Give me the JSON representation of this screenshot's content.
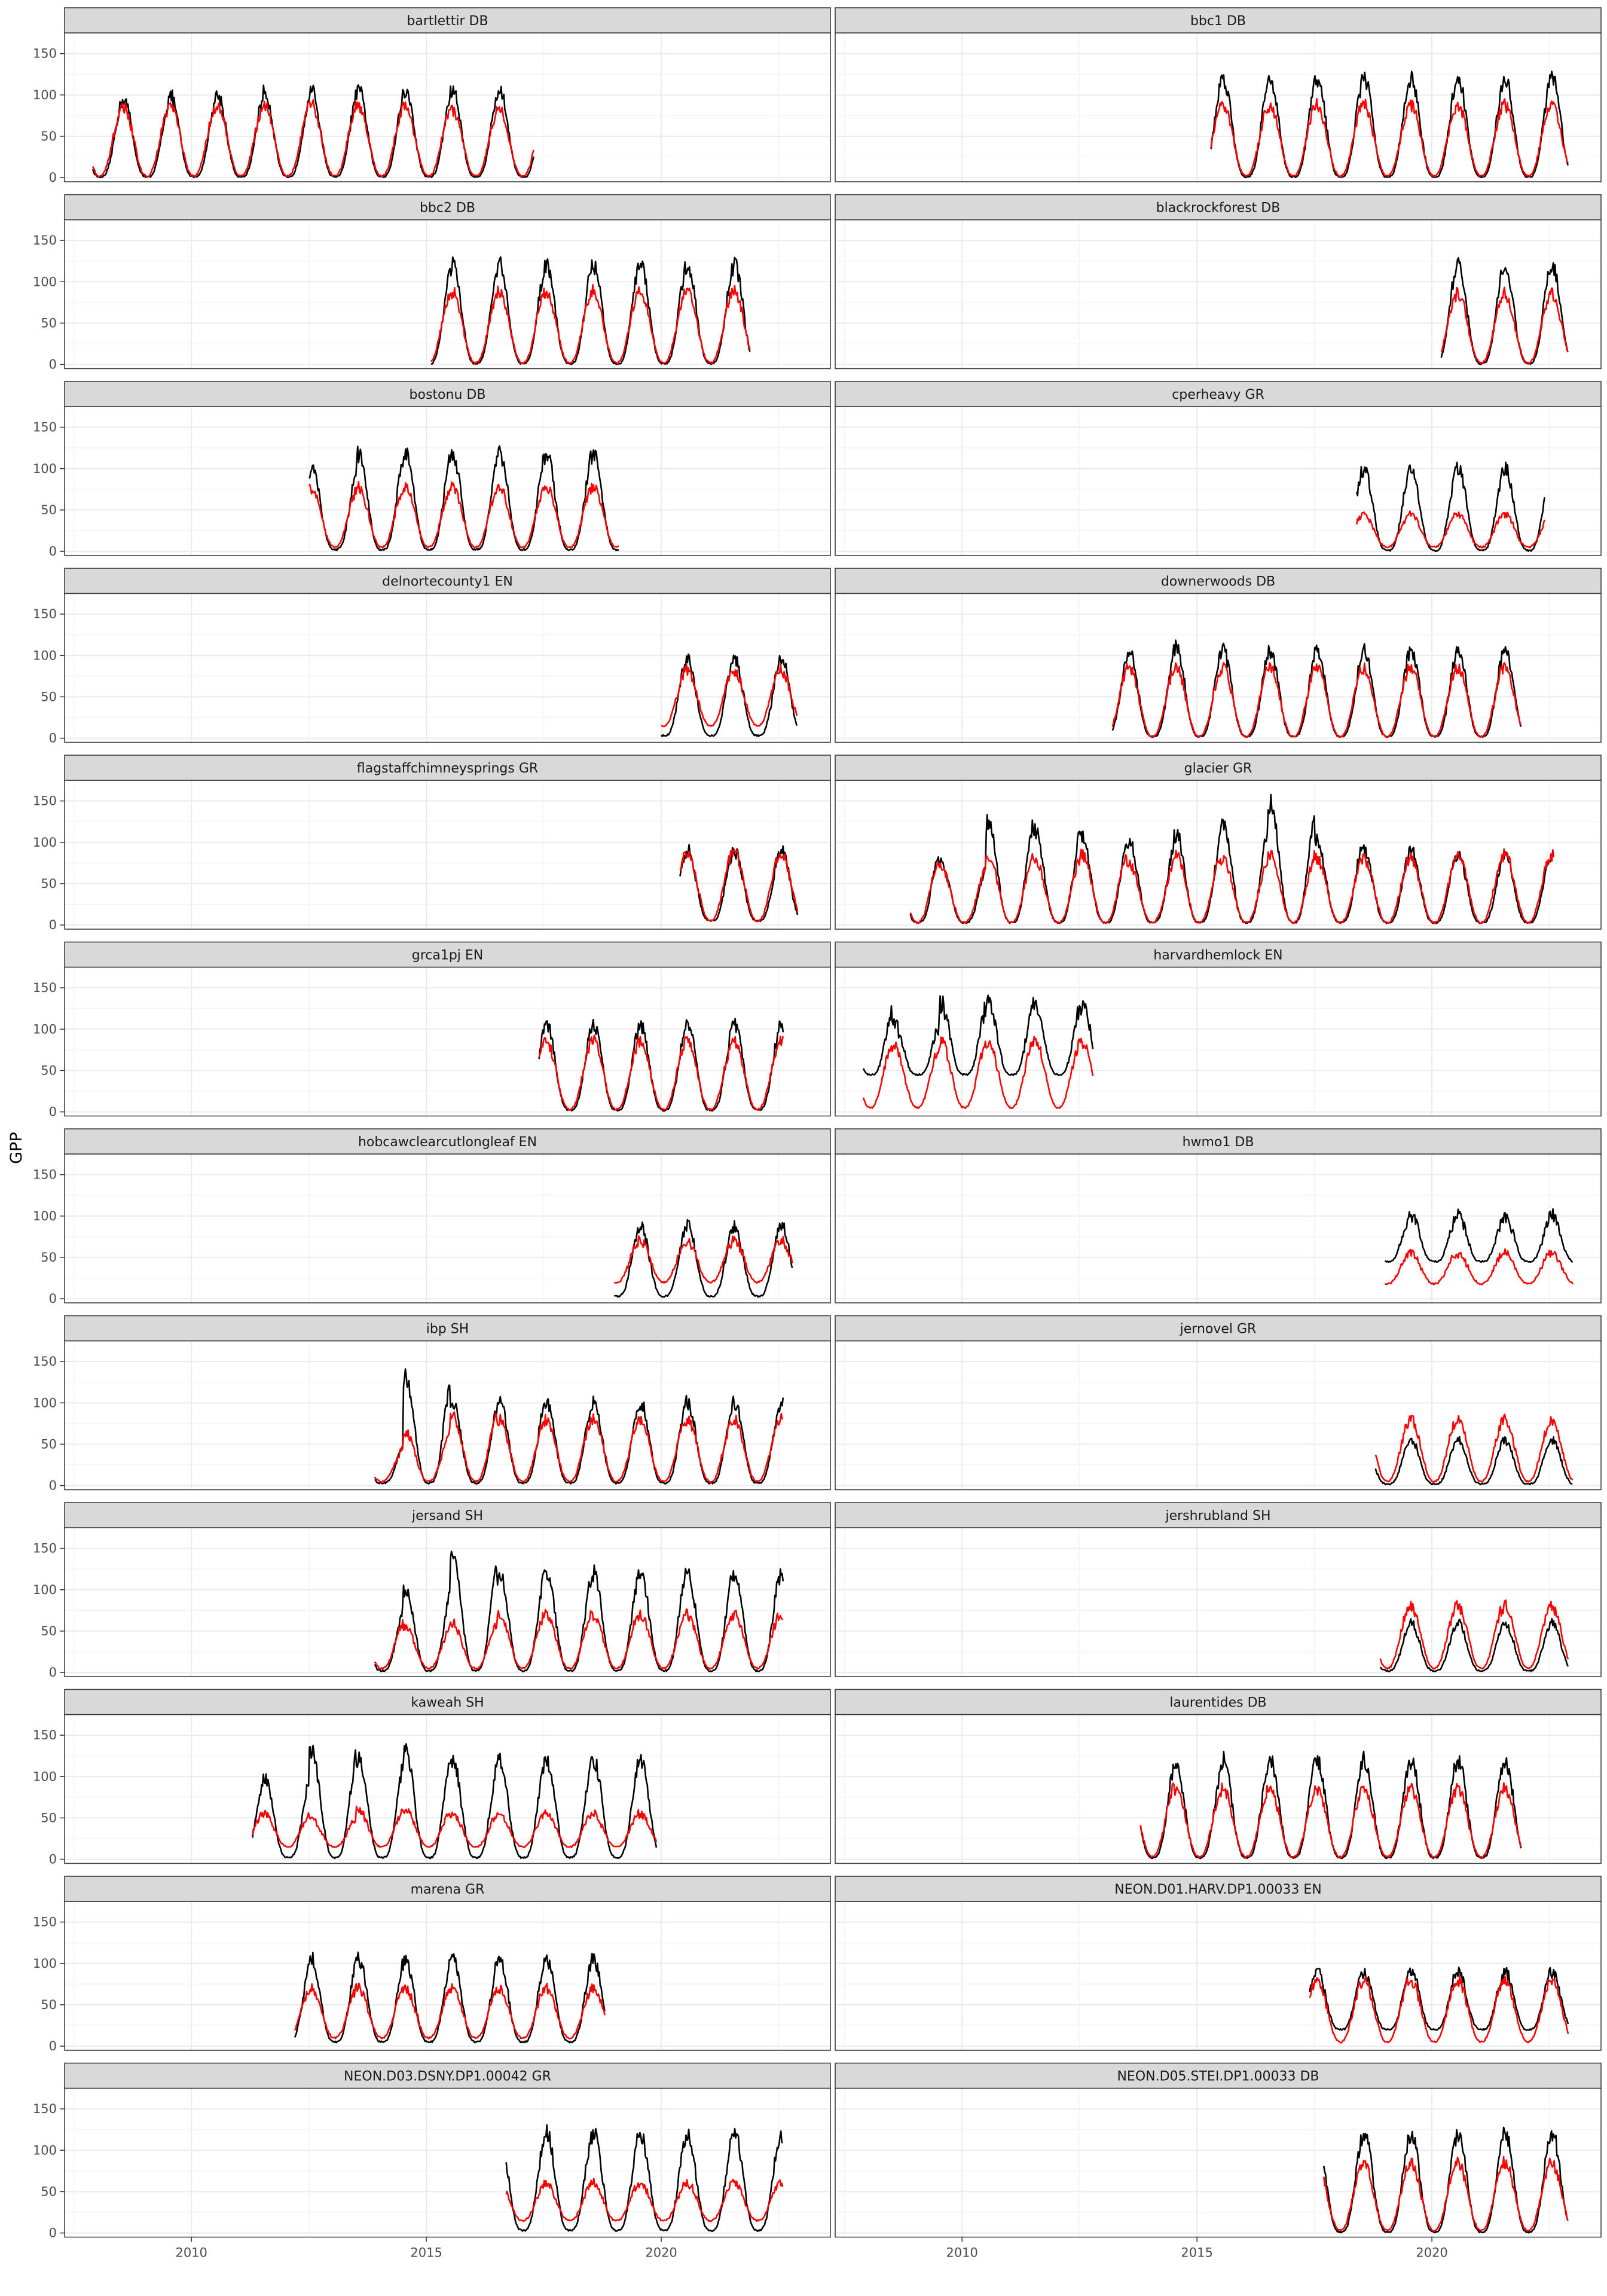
{
  "chart_data": {
    "type": "line",
    "facet_layout": "2 columns x 12 rows, shared axes",
    "ylabel": "GPP",
    "xlabel": "",
    "ylim": [
      -5,
      175
    ],
    "yticks": [
      0,
      50,
      100,
      150
    ],
    "xlim": [
      2007.3,
      2023.6
    ],
    "xticks": [
      2010,
      2015,
      2020
    ],
    "grid": true,
    "legend": "none",
    "series_colors": {
      "black": "#000000",
      "red": "#ff0000"
    },
    "panels": [
      {
        "title": "bartlettir DB",
        "start": 2007.9,
        "end": 2017.3,
        "peaks_black": [
          95,
          95,
          98,
          100,
          103,
          104,
          105,
          104,
          105
        ],
        "peaks_red": [
          85,
          85,
          88,
          85,
          88,
          88,
          88,
          85,
          82
        ],
        "base_black": 1,
        "base_red": 2
      },
      {
        "title": "bbc1 DB",
        "start": 2015.3,
        "end": 2022.9,
        "peaks_black": [
          98,
          118,
          118,
          115,
          110,
          118,
          118,
          120
        ],
        "peaks_red": [
          85,
          88,
          90,
          88,
          85,
          88,
          85,
          88
        ],
        "base_black": 1,
        "base_red": 2
      },
      {
        "title": "bbc2 DB",
        "start": 2015.1,
        "end": 2021.9,
        "peaks_black": [
          100,
          98,
          95,
          110,
          105,
          118,
          120
        ],
        "peaks_red": [
          85,
          80,
          80,
          85,
          85,
          85,
          88
        ],
        "base_black": 1,
        "base_red": 2
      },
      {
        "title": "blackrockforest DB",
        "start": 2020.2,
        "end": 2022.9,
        "peaks_black": [
          105,
          122,
          120
        ],
        "peaks_red": [
          85,
          88,
          85
        ],
        "base_black": 1,
        "base_red": 2
      },
      {
        "title": "bostonu DB",
        "start": 2012.5,
        "end": 2019.1,
        "peaks_black": [
          110,
          130,
          130,
          112,
          105,
          100,
          118
        ],
        "peaks_red": [
          70,
          80,
          80,
          75,
          78,
          75,
          78
        ],
        "base_black": 2,
        "base_red": 5
      },
      {
        "title": "cperheavy GR",
        "start": 2018.4,
        "end": 2022.4,
        "peaks_black": [
          142,
          138,
          45,
          142,
          100
        ],
        "peaks_red": [
          75,
          80,
          50,
          80,
          45
        ],
        "base_black": 1,
        "base_red": 5
      },
      {
        "title": "delnortecounty1 EN",
        "start": 2020.0,
        "end": 2022.9,
        "peaks_black": [
          85,
          155,
          95
        ],
        "peaks_red": [
          80,
          65,
          82
        ],
        "base_black": 3,
        "base_red": 15
      },
      {
        "title": "downerwoods DB",
        "start": 2013.2,
        "end": 2021.9,
        "peaks_black": [
          108,
          110,
          100,
          105,
          110,
          105,
          105,
          110,
          105
        ],
        "peaks_red": [
          85,
          85,
          80,
          85,
          85,
          85,
          85,
          85,
          85
        ],
        "base_black": 2,
        "base_red": 2
      },
      {
        "title": "flagstaffchimneysprings GR",
        "start": 2020.4,
        "end": 2022.9,
        "peaks_black": [
          60,
          80,
          90
        ],
        "peaks_red": [
          60,
          80,
          88
        ],
        "base_black": 5,
        "base_red": 5
      },
      {
        "title": "glacier GR",
        "start": 2008.9,
        "end": 2022.6,
        "peaks_black": [
          112,
          95,
          75,
          125,
          115,
          105,
          100,
          110,
          120,
          145,
          100,
          90,
          90,
          85
        ],
        "peaks_red": [
          85,
          80,
          70,
          85,
          80,
          85,
          75,
          85,
          80,
          85,
          80,
          80,
          80,
          85
        ],
        "base_black": 3,
        "base_red": 3
      },
      {
        "title": "grca1pj EN",
        "start": 2017.4,
        "end": 2022.6,
        "peaks_black": [
          108,
          115,
          118,
          105,
          108,
          105
        ],
        "peaks_red": [
          75,
          75,
          80,
          45,
          75,
          85
        ],
        "base_black": 2,
        "base_red": 3
      },
      {
        "title": "harvardhemlock EN",
        "start": 2007.9,
        "end": 2012.8,
        "peaks_black": [
          125,
          105,
          130
        ],
        "peaks_red": [
          85,
          80,
          85
        ],
        "base_black": 45,
        "base_red": 5
      },
      {
        "title": "hobcawclearcutlongleaf EN",
        "start": 2019.0,
        "end": 2022.8,
        "peaks_black": [
          80,
          105,
          105,
          88
        ],
        "peaks_red": [
          70,
          70,
          70,
          70
        ],
        "base_black": 3,
        "base_red": 20
      },
      {
        "title": "hwmo1 DB",
        "start": 2019.0,
        "end": 2023.0,
        "peaks_black": [
          95,
          110,
          105,
          100
        ],
        "peaks_red": [
          60,
          55,
          55,
          55
        ],
        "base_black": 45,
        "base_red": 18
      },
      {
        "title": "ibp SH",
        "start": 2013.9,
        "end": 2022.6,
        "peaks_black": [
          120,
          165,
          90,
          120,
          100,
          110,
          50,
          130,
          100,
          100
        ],
        "peaks_red": [
          40,
          80,
          75,
          85,
          50,
          70,
          45,
          65,
          85,
          80
        ],
        "base_black": 3,
        "base_red": 5
      },
      {
        "title": "jernovel GR",
        "start": 2018.8,
        "end": 2023.0,
        "peaks_black": [
          30,
          50,
          25,
          55
        ],
        "peaks_red": [
          45,
          50,
          85,
          80
        ],
        "base_black": 2,
        "base_red": 5
      },
      {
        "title": "jersand SH",
        "start": 2013.9,
        "end": 2022.6,
        "peaks_black": [
          110,
          100,
          110,
          145,
          115,
          105,
          80,
          100,
          138,
          120
        ],
        "peaks_red": [
          45,
          60,
          80,
          75,
          65,
          55,
          60,
          55,
          60,
          70
        ],
        "base_black": 2,
        "base_red": 5
      },
      {
        "title": "jershrubland SH",
        "start": 2018.9,
        "end": 2022.9,
        "peaks_black": [
          80,
          110,
          120,
          60
        ],
        "peaks_red": [
          50,
          55,
          60,
          80
        ],
        "base_black": 2,
        "base_red": 5
      },
      {
        "title": "kaweah SH",
        "start": 2011.3,
        "end": 2019.9,
        "peaks_black": [
          128,
          88,
          60,
          90,
          100,
          130,
          120,
          130,
          120
        ],
        "peaks_red": [
          65,
          45,
          40,
          55,
          55,
          50,
          60,
          60,
          55
        ],
        "base_black": 2,
        "base_red": 15
      },
      {
        "title": "laurentides DB",
        "start": 2013.8,
        "end": 2021.9,
        "peaks_black": [
          100,
          95,
          95,
          110,
          115,
          110,
          115,
          110,
          120
        ],
        "peaks_red": [
          70,
          90,
          85,
          88,
          90,
          88,
          90,
          85,
          85
        ],
        "base_black": 2,
        "base_red": 3
      },
      {
        "title": "marena GR",
        "start": 2012.2,
        "end": 2018.8,
        "peaks_black": [
          95,
          105,
          100,
          105,
          100,
          105,
          105
        ],
        "peaks_red": [
          65,
          70,
          70,
          70,
          70,
          70,
          70
        ],
        "base_black": 5,
        "base_red": 10
      },
      {
        "title": "NEON.D01.HARV.DP1.00033 EN",
        "start": 2017.4,
        "end": 2022.9,
        "peaks_black": [
          85,
          90,
          85,
          85,
          90,
          90
        ],
        "peaks_red": [
          70,
          80,
          80,
          80,
          85,
          80
        ],
        "base_black": 20,
        "base_red": 5
      },
      {
        "title": "NEON.D03.DSNY.DP1.00042 GR",
        "start": 2016.7,
        "end": 2022.6,
        "peaks_black": [
          50,
          45,
          60,
          125,
          60,
          120
        ],
        "peaks_red": [
          70,
          65,
          60,
          65,
          65,
          60
        ],
        "base_black": 3,
        "base_red": 15
      },
      {
        "title": "NEON.D05.STEI.DP1.00033 DB",
        "start": 2017.7,
        "end": 2022.9,
        "peaks_black": [
          100,
          120,
          115,
          110,
          125,
          120
        ],
        "peaks_red": [
          85,
          85,
          85,
          85,
          85,
          85
        ],
        "base_black": 1,
        "base_red": 3
      }
    ]
  }
}
